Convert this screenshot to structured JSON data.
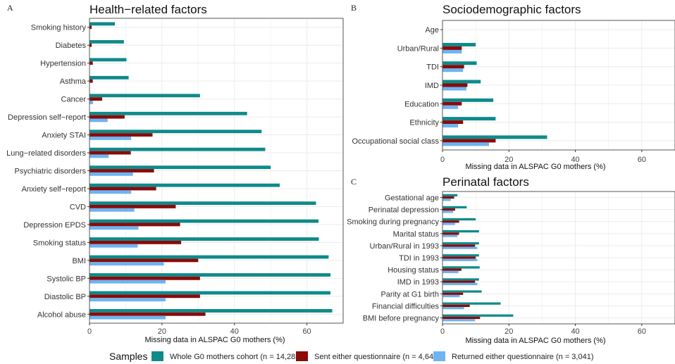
{
  "colors": {
    "whole": "#0f8a8a",
    "sent": "#8b0a0a",
    "returned": "#6cb4f2",
    "grid": "#ececec",
    "frame": "#555555"
  },
  "legend": {
    "title": "Samples",
    "placement": "bottom",
    "items": [
      {
        "key": "whole",
        "label": "Whole G0 mothers cohort (n = 14,282)"
      },
      {
        "key": "sent",
        "label": "Sent either questionnaire (n = 4,647)"
      },
      {
        "key": "returned",
        "label": "Returned either questionnaire (n = 3,041)"
      }
    ]
  },
  "chart_data": [
    {
      "panel": "A",
      "type": "bar",
      "orientation": "horizontal",
      "title": "Health−related factors",
      "xlabel": "Missing data in ALSPAC G0 mothers (%)",
      "ylabel": "",
      "xlim": [
        0,
        70
      ],
      "xticks": [
        0,
        20,
        40,
        60
      ],
      "grid": true,
      "categories": [
        "Smoking history",
        "Diabetes",
        "Hypertension",
        "Asthma",
        "Cancer",
        "Depression self−report",
        "Anxiety STAI",
        "Lung−related disorders",
        "Psychiatric disorders",
        "Anxiety self−report",
        "CVD",
        "Depression EPDS",
        "Smoking status",
        "BMI",
        "Systolic BP",
        "Diastolic BP",
        "Alcohol abuse"
      ],
      "series": [
        {
          "name": "Whole G0 mothers cohort (n = 14,282)",
          "key": "whole",
          "values": [
            7,
            9.5,
            10.2,
            10.8,
            30.5,
            43.5,
            47.5,
            48.5,
            50,
            52.5,
            62.5,
            63.2,
            63.3,
            66,
            66.5,
            66.5,
            67
          ]
        },
        {
          "name": "Sent either questionnaire (n = 4,647)",
          "key": "sent",
          "values": [
            0.6,
            0.6,
            0.9,
            0.9,
            3.5,
            9.7,
            17.4,
            11.4,
            17.8,
            18.4,
            23.8,
            25,
            25.3,
            30,
            30.5,
            30.5,
            32
          ]
        },
        {
          "name": "Returned either questionnaire (n = 3,041)",
          "key": "returned",
          "values": [
            0.1,
            0.1,
            0.1,
            0.1,
            1,
            5,
            11.5,
            5.3,
            12,
            11.5,
            12.4,
            13.5,
            13.3,
            20.5,
            21,
            21,
            21
          ]
        }
      ]
    },
    {
      "panel": "B",
      "type": "bar",
      "orientation": "horizontal",
      "title": "Sociodemographic factors",
      "xlabel": "Missing data in ALSPAC G0 mothers (%)",
      "ylabel": "",
      "xlim": [
        0,
        70
      ],
      "xticks": [
        0,
        20,
        40,
        60
      ],
      "grid": true,
      "categories": [
        "Age",
        "Urban/Rural",
        "TDI",
        "IMD",
        "Education",
        "Ethnicity",
        "Occupational social class"
      ],
      "series": [
        {
          "name": "Whole G0 mothers cohort (n = 14,282)",
          "key": "whole",
          "values": [
            0,
            10,
            10.3,
            11.5,
            15.3,
            16,
            31.5
          ]
        },
        {
          "name": "Sent either questionnaire (n = 4,647)",
          "key": "sent",
          "values": [
            0,
            5.8,
            6.5,
            7.5,
            5.8,
            6.2,
            16
          ]
        },
        {
          "name": "Returned either questionnaire (n = 3,041)",
          "key": "returned",
          "values": [
            0,
            5.8,
            6.2,
            7.2,
            4.7,
            4.7,
            14
          ]
        }
      ]
    },
    {
      "panel": "C",
      "type": "bar",
      "orientation": "horizontal",
      "title": "Perinatal factors",
      "xlabel": "Missing data in ALSPAC G0 mothers (%)",
      "ylabel": "",
      "xlim": [
        0,
        70
      ],
      "xticks": [
        0,
        20,
        40,
        60
      ],
      "grid": true,
      "categories": [
        "Gestational age",
        "Perinatal depression",
        "Smoking during pregnancy",
        "Marital status",
        "Urban/Rural in 1993",
        "TDI in 1993",
        "Housing status",
        "IMD in 1993",
        "Parity at G1 birth",
        "Financial difficulties",
        "BMI before pregnancy"
      ],
      "series": [
        {
          "name": "Whole G0 mothers cohort (n = 14,282)",
          "key": "whole",
          "values": [
            4.5,
            7.3,
            10,
            11,
            11,
            11,
            11.2,
            11,
            11.8,
            17.5,
            21.3
          ]
        },
        {
          "name": "Sent either questionnaire (n = 4,647)",
          "key": "sent",
          "values": [
            3.5,
            3.8,
            5,
            5,
            9.8,
            10,
            5.7,
            9.8,
            6.2,
            8.2,
            11.3
          ]
        },
        {
          "name": "Returned either questionnaire (n = 3,041)",
          "key": "returned",
          "values": [
            2.5,
            3.2,
            3.8,
            4.5,
            10.5,
            10.5,
            4.8,
            10.5,
            5.2,
            6.5,
            9.8
          ]
        }
      ]
    }
  ]
}
